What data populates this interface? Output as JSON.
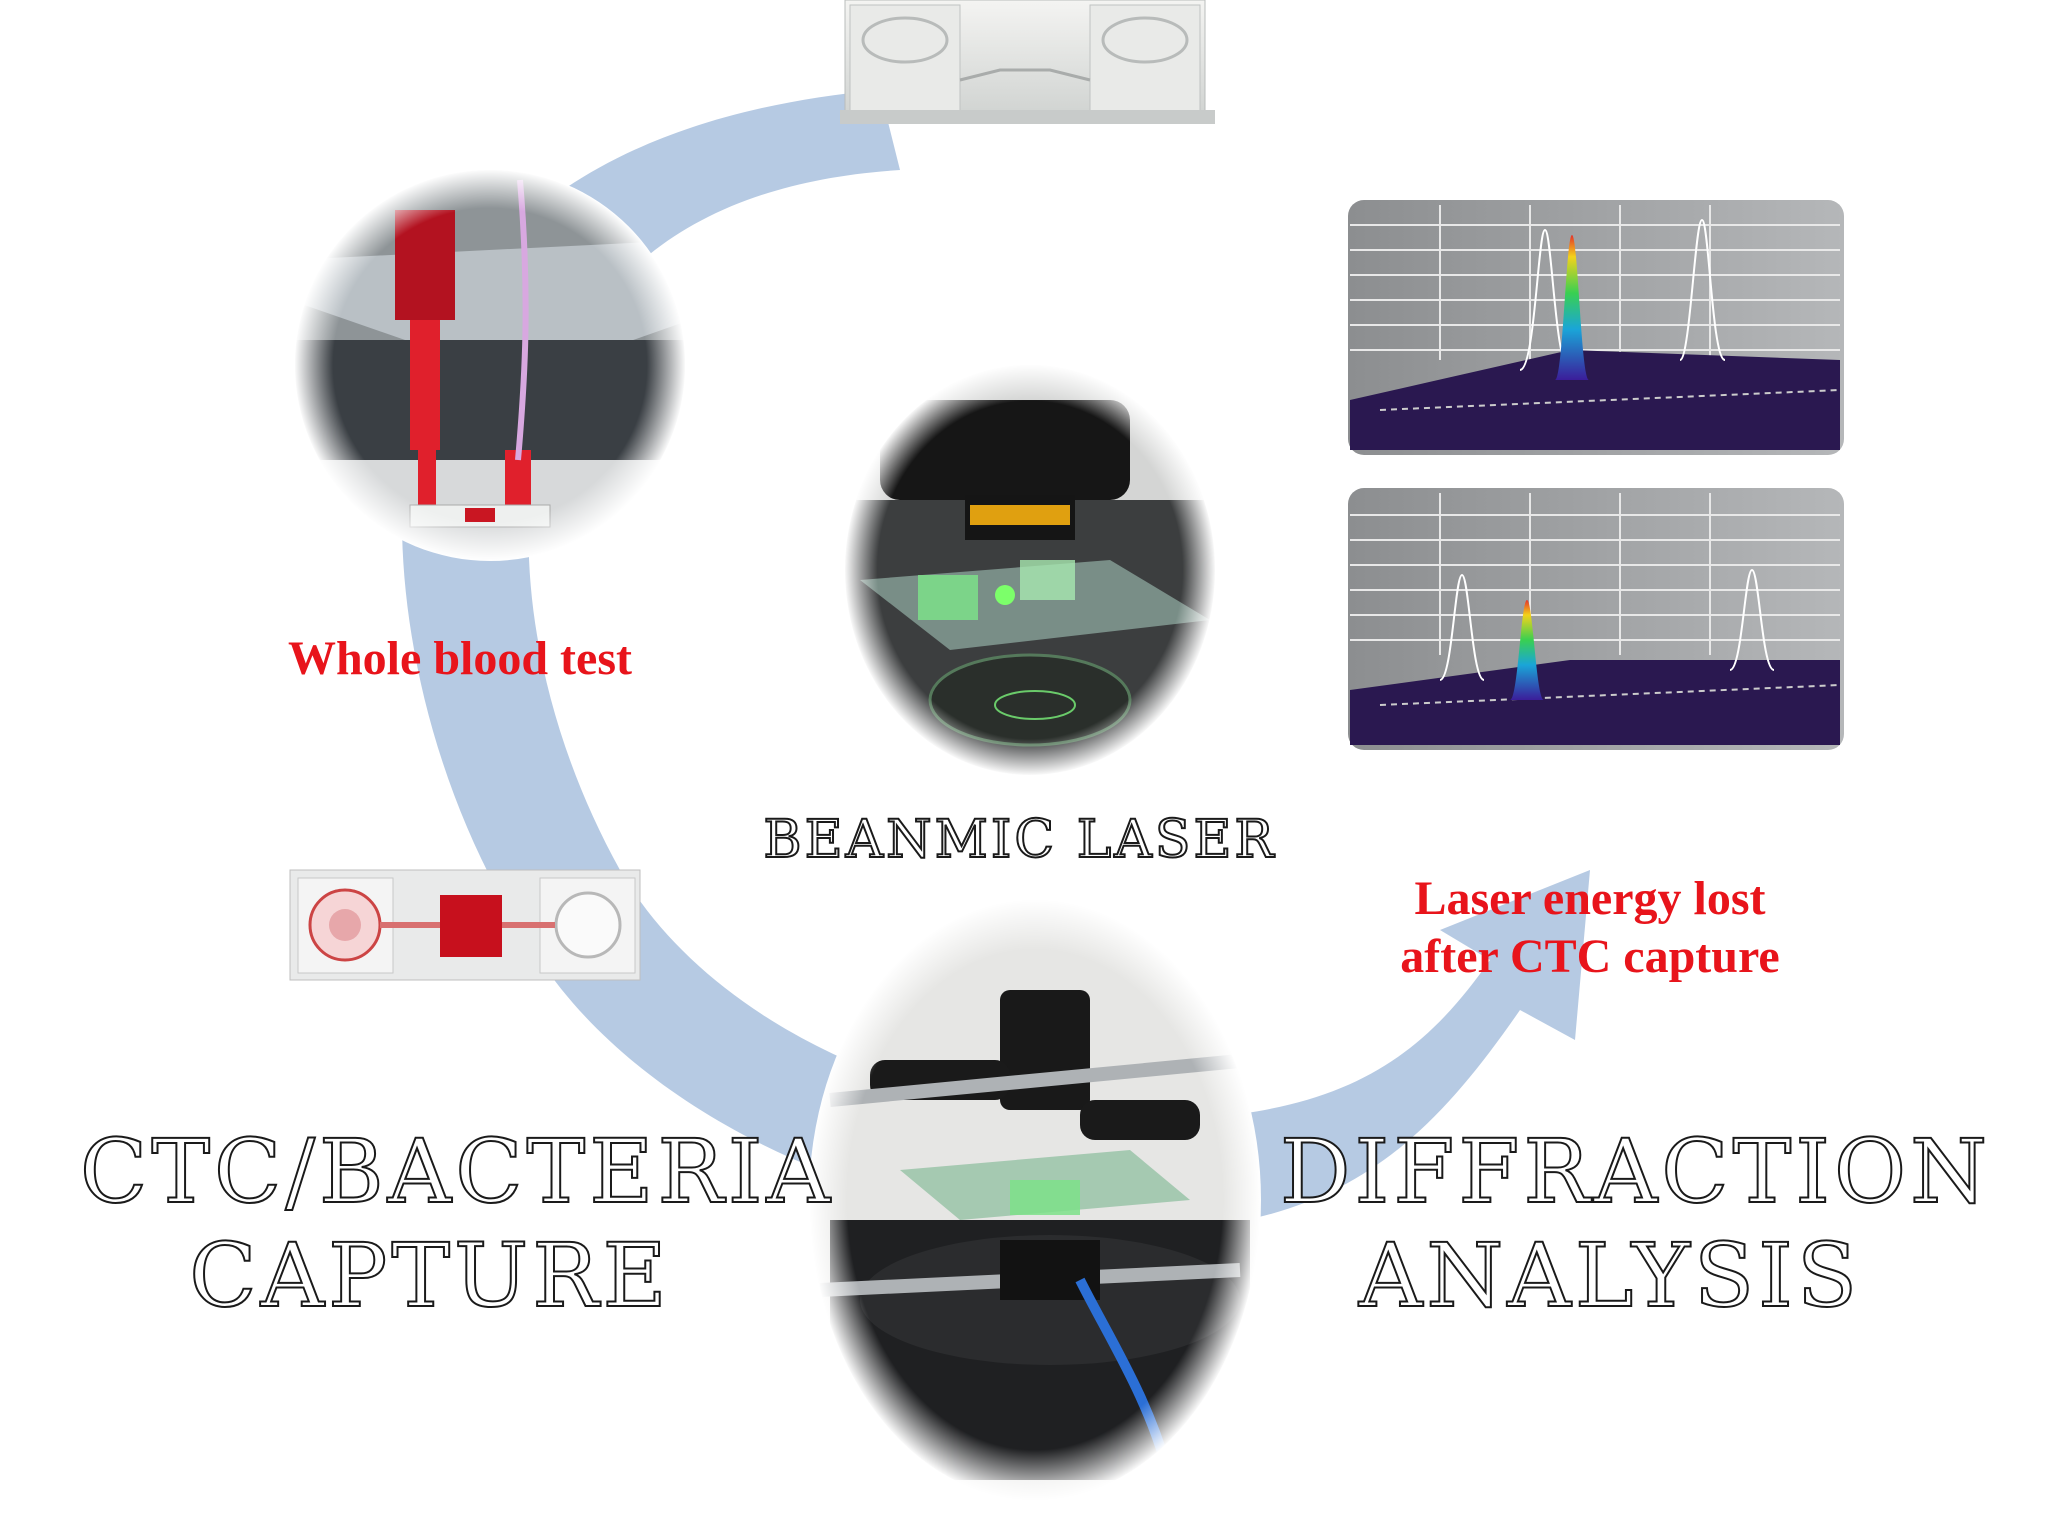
{
  "labels": {
    "whole_blood": "Whole blood test",
    "beanmic_laser": "BEANMIC LASER",
    "laser_energy_line1": "Laser energy lost",
    "laser_energy_line2": "after CTC capture",
    "capture_line1": "CTC/BACTERIA",
    "capture_line2": "CAPTURE",
    "diffraction_line1": "DIFFRACTION",
    "diffraction_line2": "ANALYSIS"
  },
  "colors": {
    "arrow": "#a9c1de",
    "label_red": "#e8141b",
    "plot_floor": "#2a1850"
  }
}
